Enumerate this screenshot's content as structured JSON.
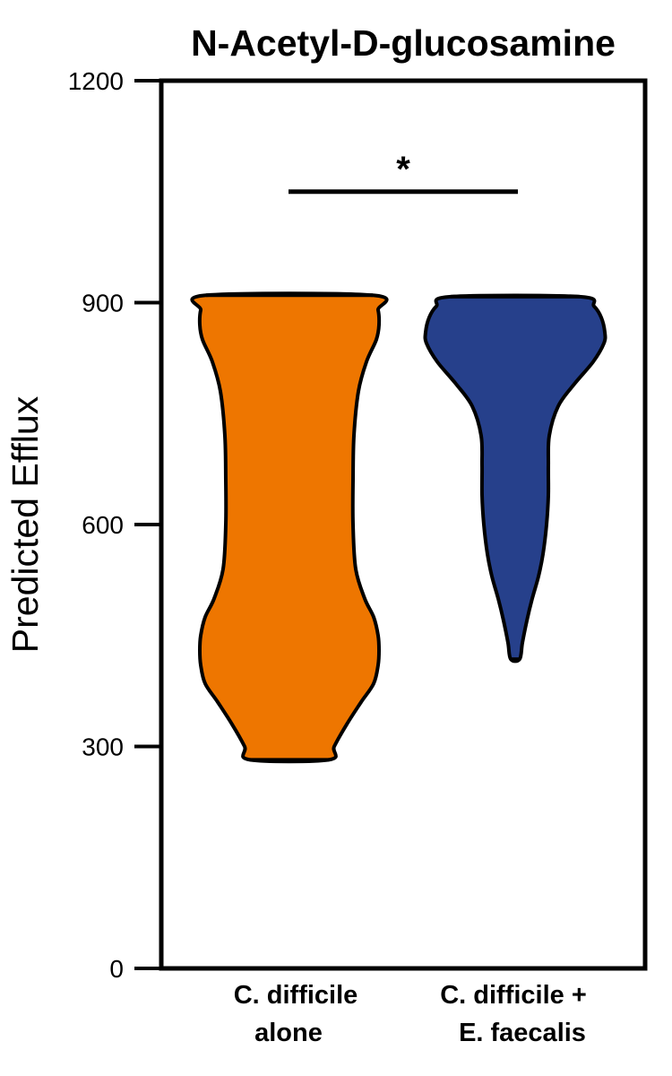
{
  "chart_data": {
    "type": "violin",
    "title": "N-Acetyl-D-glucosamine",
    "ylabel": "Predicted Efflux",
    "xlabel": "",
    "ylim": [
      0,
      1200
    ],
    "yticks": [
      0,
      300,
      600,
      900,
      1200
    ],
    "categories": [
      {
        "line1": "C. difficile",
        "line2": "alone"
      },
      {
        "line1": "C. difficile +",
        "line2": "E. faecalis"
      }
    ],
    "series": [
      {
        "name": "C. difficile alone",
        "color": "#EE7600",
        "min": 282,
        "max": 910,
        "profile": [
          [
            282,
            0.44
          ],
          [
            300,
            0.5
          ],
          [
            330,
            0.64
          ],
          [
            360,
            0.8
          ],
          [
            385,
            0.94
          ],
          [
            410,
            0.99
          ],
          [
            430,
            1.0
          ],
          [
            450,
            0.99
          ],
          [
            475,
            0.94
          ],
          [
            500,
            0.84
          ],
          [
            540,
            0.74
          ],
          [
            600,
            0.71
          ],
          [
            660,
            0.71
          ],
          [
            720,
            0.72
          ],
          [
            780,
            0.77
          ],
          [
            820,
            0.86
          ],
          [
            850,
            0.97
          ],
          [
            870,
            1.0
          ],
          [
            890,
            0.99
          ],
          [
            910,
            0.93
          ]
        ]
      },
      {
        "name": "C. difficile + E. faecalis",
        "color": "#26408B",
        "min": 418,
        "max": 908,
        "profile": [
          [
            418,
            0.05
          ],
          [
            440,
            0.08
          ],
          [
            470,
            0.13
          ],
          [
            500,
            0.19
          ],
          [
            530,
            0.26
          ],
          [
            560,
            0.31
          ],
          [
            600,
            0.35
          ],
          [
            640,
            0.37
          ],
          [
            680,
            0.37
          ],
          [
            720,
            0.38
          ],
          [
            760,
            0.48
          ],
          [
            790,
            0.66
          ],
          [
            820,
            0.87
          ],
          [
            845,
            0.99
          ],
          [
            860,
            1.0
          ],
          [
            880,
            0.96
          ],
          [
            895,
            0.88
          ],
          [
            908,
            0.72
          ]
        ]
      }
    ],
    "annotations": [
      {
        "text": "*",
        "between": [
          0,
          1
        ],
        "y": 1050
      }
    ]
  }
}
